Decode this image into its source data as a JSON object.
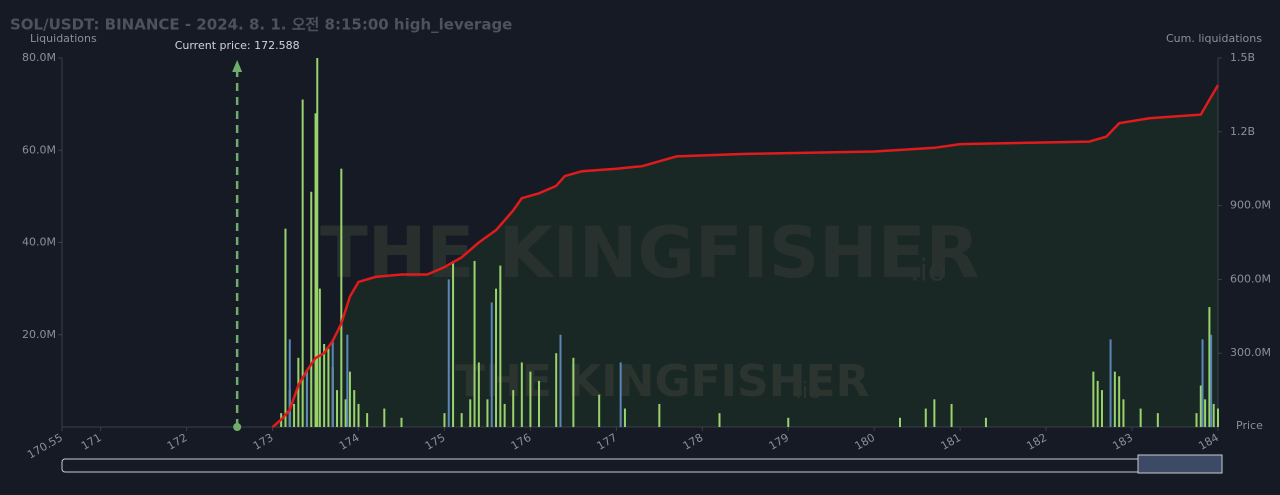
{
  "chart_data": {
    "type": "bar",
    "title": "SOL/USDT: BINANCE - 2024. 8. 1. 오전 8:15:00 high_leverage",
    "y_label": "Liquidations",
    "y2_label": "Cum. liquidations",
    "x_label": "Price",
    "watermark": "THE KINGFISHER",
    "watermark_suffix": ".io",
    "current_price": {
      "value": 172.588,
      "label": "Current price: 172.588"
    },
    "current_price_color": "#6fae6a",
    "xlim": [
      170.55,
      184
    ],
    "xticks": [
      170.55,
      171,
      172,
      173,
      174,
      175,
      176,
      177,
      178,
      179,
      180,
      181,
      182,
      183,
      184
    ],
    "ylim": [
      0,
      80000000
    ],
    "yticks": [
      {
        "value": 20000000,
        "label": "20.0M"
      },
      {
        "value": 40000000,
        "label": "40.0M"
      },
      {
        "value": 60000000,
        "label": "60.0M"
      },
      {
        "value": 80000000,
        "label": "80.0M"
      }
    ],
    "y2lim": [
      0,
      1500000000
    ],
    "y2ticks": [
      {
        "value": 300000000,
        "label": "300.0M"
      },
      {
        "value": 600000000,
        "label": "600.0M"
      },
      {
        "value": 900000000,
        "label": "900.0M"
      },
      {
        "value": 1200000000,
        "label": "1.2B"
      },
      {
        "value": 1500000000,
        "label": "1.5B"
      }
    ],
    "grid": false,
    "series": [
      {
        "type": "bar",
        "color": "#9ad26c",
        "x": [
          173.1,
          173.15,
          173.2,
          173.25,
          173.3,
          173.35,
          173.4,
          173.45,
          173.5,
          173.52,
          173.55,
          173.6,
          173.65,
          173.7,
          173.75,
          173.8,
          173.85,
          173.9,
          173.95,
          174.0,
          174.1,
          174.3,
          174.5,
          175.0,
          175.1,
          175.2,
          175.3,
          175.35,
          175.4,
          175.5,
          175.6,
          175.65,
          175.7,
          175.8,
          175.9,
          176.0,
          176.1,
          176.3,
          176.5,
          176.8,
          177.1,
          177.5,
          178.2,
          179.0,
          180.3,
          180.6,
          180.7,
          180.9,
          181.3,
          182.55,
          182.6,
          182.65,
          182.8,
          182.85,
          182.9,
          183.1,
          183.3,
          183.75,
          183.8,
          183.85,
          183.9,
          183.95,
          184.0
        ],
        "values": [
          3000000,
          43000000,
          8000000,
          5000000,
          15000000,
          71000000,
          12000000,
          51000000,
          68000000,
          80000000,
          30000000,
          18000000,
          17000000,
          13000000,
          8000000,
          56000000,
          6000000,
          12000000,
          8000000,
          5000000,
          3000000,
          4000000,
          2000000,
          3000000,
          36000000,
          3000000,
          6000000,
          36000000,
          14000000,
          6000000,
          30000000,
          35000000,
          5000000,
          8000000,
          14000000,
          12000000,
          10000000,
          16000000,
          15000000,
          7000000,
          4000000,
          5000000,
          3000000,
          2000000,
          2000000,
          4000000,
          6000000,
          5000000,
          2000000,
          12000000,
          10000000,
          8000000,
          12000000,
          11000000,
          6000000,
          4000000,
          3000000,
          3000000,
          9000000,
          6000000,
          26000000,
          5000000,
          4000000
        ]
      },
      {
        "type": "bar",
        "color": "#5b86b8",
        "x": [
          173.2,
          173.4,
          173.7,
          173.87,
          175.05,
          175.55,
          176.35,
          177.05,
          182.75,
          183.82,
          183.92
        ],
        "values": [
          19000000,
          12000000,
          19000000,
          20000000,
          32000000,
          27000000,
          20000000,
          14000000,
          19000000,
          19000000,
          20000000
        ]
      },
      {
        "type": "line",
        "axis": "y2",
        "color": "#e01b1b",
        "x": [
          173.0,
          173.1,
          173.2,
          173.3,
          173.4,
          173.5,
          173.6,
          173.7,
          173.8,
          173.9,
          174.0,
          174.2,
          174.5,
          174.8,
          175.0,
          175.2,
          175.4,
          175.6,
          175.8,
          175.9,
          176.1,
          176.3,
          176.4,
          176.6,
          177.0,
          177.3,
          177.5,
          177.7,
          178.5,
          180.0,
          180.7,
          181.0,
          182.5,
          182.7,
          182.85,
          183.2,
          183.8,
          183.9,
          184.0
        ],
        "values": [
          0,
          30000000,
          70000000,
          170000000,
          230000000,
          280000000,
          300000000,
          350000000,
          420000000,
          530000000,
          590000000,
          610000000,
          620000000,
          620000000,
          650000000,
          690000000,
          750000000,
          800000000,
          880000000,
          930000000,
          950000000,
          980000000,
          1020000000,
          1040000000,
          1050000000,
          1060000000,
          1080000000,
          1100000000,
          1110000000,
          1120000000,
          1135000000,
          1150000000,
          1160000000,
          1180000000,
          1235000000,
          1255000000,
          1270000000,
          1330000000,
          1390000000
        ]
      }
    ]
  }
}
